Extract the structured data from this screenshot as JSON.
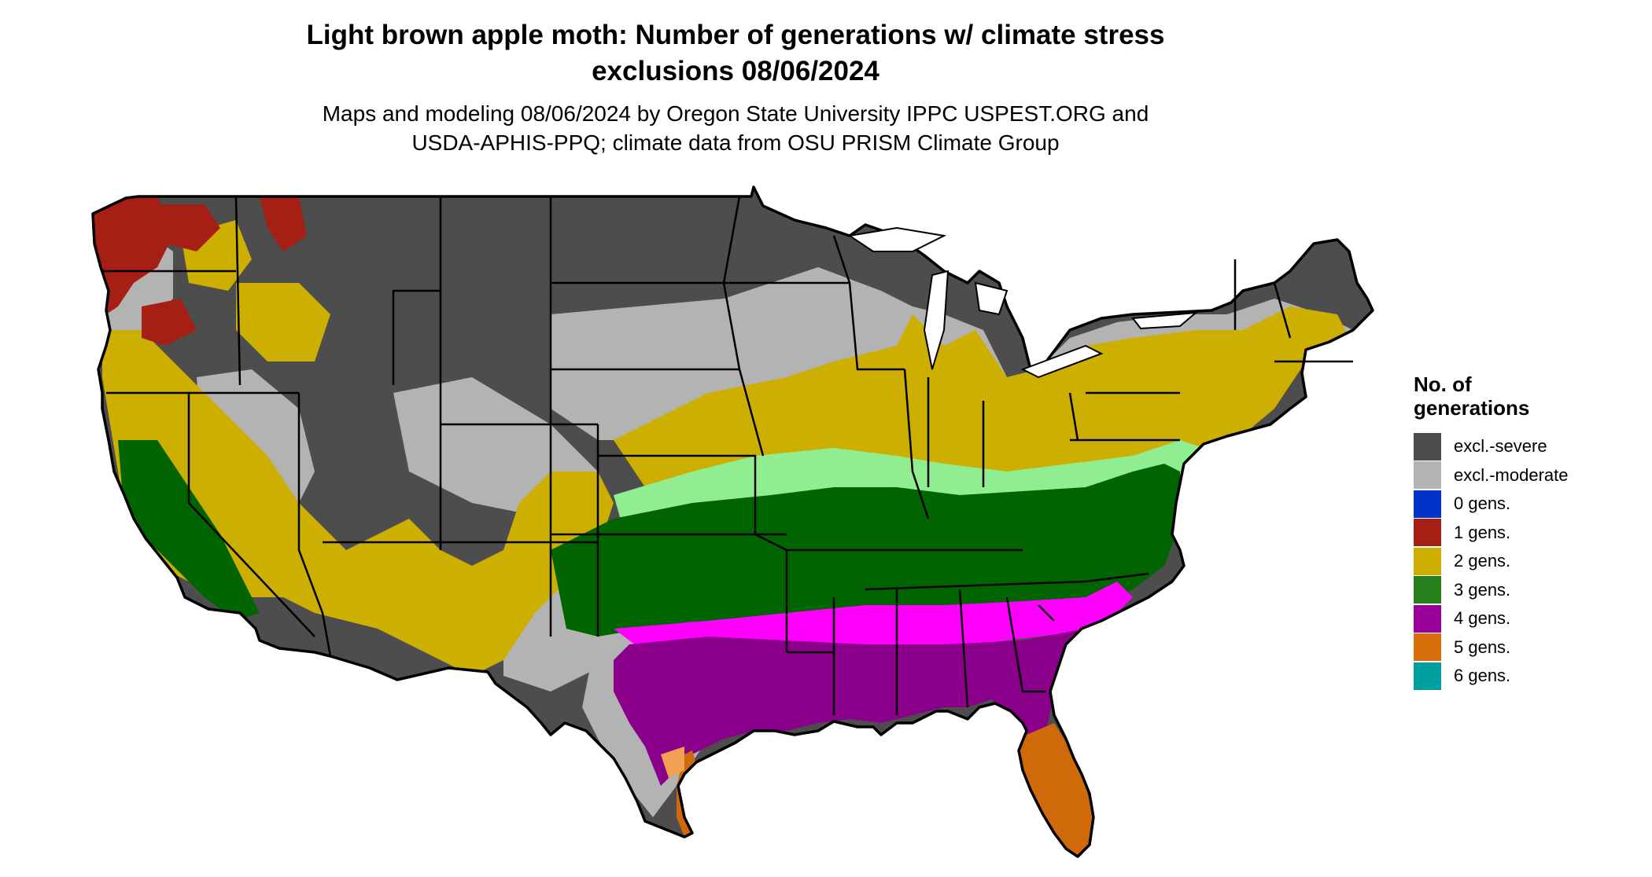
{
  "title_line1": "Light brown apple moth: Number of generations w/ climate stress",
  "title_line2": "exclusions 08/06/2024",
  "subtitle_line1": "Maps and modeling 08/06/2024 by Oregon State University IPPC USPEST.ORG and",
  "subtitle_line2": "USDA-APHIS-PPQ; climate data from OSU PRISM Climate Group",
  "legend": {
    "title_line1": "No. of",
    "title_line2": "generations",
    "items": [
      {
        "label": "excl.-severe",
        "color": "#4d4d4d"
      },
      {
        "label": "excl.-moderate",
        "color": "#b3b3b3"
      },
      {
        "label": "0 gens.",
        "color": "#0033cc"
      },
      {
        "label": "1 gens.",
        "color": "#a61f14"
      },
      {
        "label": "2 gens.",
        "color": "#ccaf00"
      },
      {
        "label": "3 gens.",
        "color": "#267f1a"
      },
      {
        "label": "4 gens.",
        "color": "#990099"
      },
      {
        "label": "5 gens.",
        "color": "#d96f0a"
      },
      {
        "label": "6 gens.",
        "color": "#00a0a0"
      }
    ]
  },
  "map_colors": {
    "excl_severe": "#4d4d4d",
    "excl_moderate": "#b3b3b3",
    "gen1": "#a61f14",
    "gen2": "#ccaf00",
    "gen3": "#006400",
    "gen3_light": "#90ee90",
    "gen4": "#8b008b",
    "gen4_light": "#ff00ff",
    "gen5": "#d0690a",
    "gen5_light": "#f0a050",
    "gen6": "#00a0a0"
  }
}
